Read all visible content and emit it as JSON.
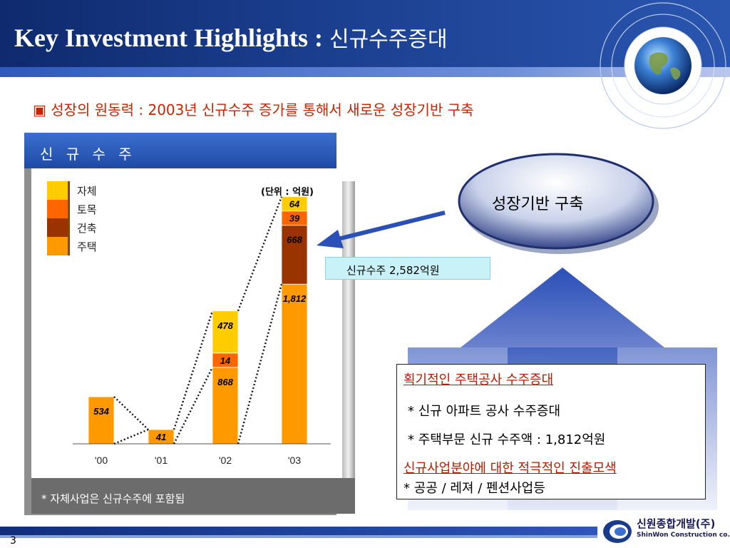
{
  "header": {
    "title_en": "Key Investment Highlights : ",
    "title_ko": "신규수주증대"
  },
  "subtitle": "▣ 성장의 원동력 : 2003년 신규수주 증가를  통해서 새로운 성장기반 구축",
  "panel": {
    "heading": "신 규 수 주",
    "note": "* 자체사업은 신규수주에 포함됨"
  },
  "chart_data": {
    "type": "bar",
    "stacked": true,
    "categories": [
      "'00",
      "'01",
      "'02",
      "'03"
    ],
    "unit": "(단위 : 억원)",
    "series": [
      {
        "name": "주택",
        "color": "#ff9900",
        "values": [
          534,
          41,
          868,
          1812
        ]
      },
      {
        "name": "건축",
        "color": "#993300",
        "values": [
          0,
          0,
          0,
          668
        ]
      },
      {
        "name": "토목",
        "color": "#ff6600",
        "values": [
          0,
          0,
          14,
          39
        ]
      },
      {
        "name": "자체",
        "color": "#ffcc00",
        "values": [
          0,
          0,
          478,
          64
        ]
      }
    ],
    "data_labels": [
      {
        "cat": 0,
        "series": 0,
        "text": "534"
      },
      {
        "cat": 1,
        "series": 0,
        "text": "41"
      },
      {
        "cat": 2,
        "series": 0,
        "text": "868"
      },
      {
        "cat": 2,
        "series": 2,
        "text": "14"
      },
      {
        "cat": 2,
        "series": 3,
        "text": "478"
      },
      {
        "cat": 3,
        "series": 0,
        "text": "1,812"
      },
      {
        "cat": 3,
        "series": 1,
        "text": "668"
      },
      {
        "cat": 3,
        "series": 2,
        "text": "39"
      },
      {
        "cat": 3,
        "series": 3,
        "text": "64"
      }
    ],
    "legend": {
      "placement": "top-left",
      "order": [
        "자체",
        "토목",
        "건축",
        "주택"
      ]
    },
    "grid": false
  },
  "total_label": "신규수주  2,582억원",
  "ellipse_label": "성장기반 구축",
  "info": {
    "heading1": "획기적인 주택공사 수주증대",
    "item1": "* 신규 아파트 공사 수주증대",
    "item2": "* 주택부문 신규 수주액 : 1,812억원",
    "heading2": "신규사업분야에 대한 적극적인 진출모색",
    "item3": "* 공공 / 레져 / 펜션사업등"
  },
  "colors": {
    "header": "#1b3f8f",
    "accent_red": "#cc2200",
    "arrow": "#2a50b8"
  },
  "footer": {
    "page": "3",
    "logo_ko": "신원종합개발(주)",
    "logo_en": "ShinWon Construction co.,Ltd."
  }
}
